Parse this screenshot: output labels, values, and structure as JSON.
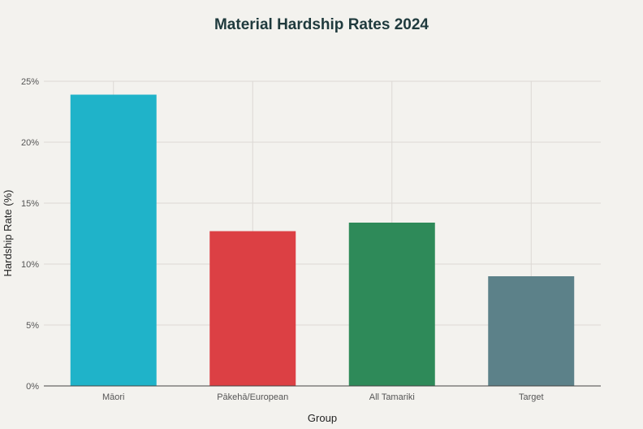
{
  "chart_data": {
    "type": "bar",
    "title": "Material Hardship Rates 2024",
    "xlabel": "Group",
    "ylabel": "Hardship Rate (%)",
    "categories": [
      "Māori",
      "Pākehā/European",
      "All Tamariki",
      "Target"
    ],
    "values": [
      23.9,
      12.7,
      13.4,
      9.0
    ],
    "colors": [
      "#1fb3c9",
      "#dc4044",
      "#2e8a59",
      "#5c8189"
    ],
    "ylim": [
      0,
      25
    ],
    "yticks": [
      0,
      5,
      10,
      15,
      20,
      25
    ],
    "ytick_labels": [
      "0%",
      "5%",
      "10%",
      "15%",
      "20%",
      "25%"
    ],
    "grid": true
  }
}
